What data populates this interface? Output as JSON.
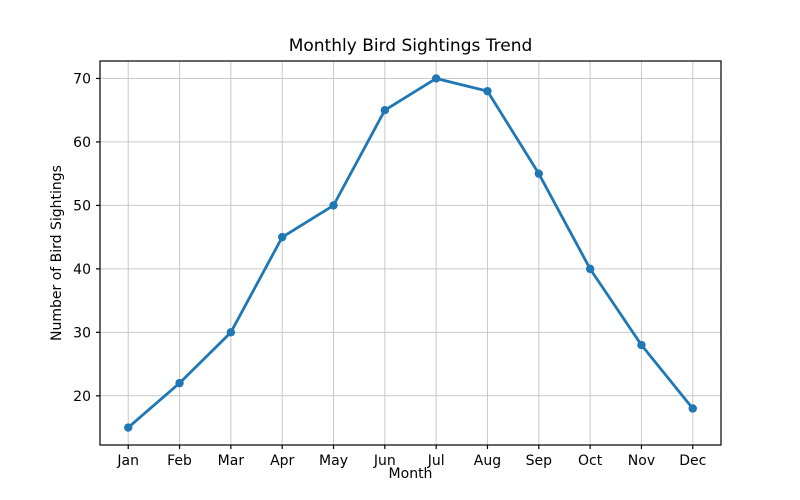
{
  "chart_data": {
    "type": "line",
    "title": "Monthly Bird Sightings Trend",
    "xlabel": "Month",
    "ylabel": "Number of Bird Sightings",
    "categories": [
      "Jan",
      "Feb",
      "Mar",
      "Apr",
      "May",
      "Jun",
      "Jul",
      "Aug",
      "Sep",
      "Oct",
      "Nov",
      "Dec"
    ],
    "values": [
      15,
      22,
      30,
      45,
      50,
      65,
      70,
      68,
      55,
      40,
      28,
      18
    ],
    "yticks": [
      20,
      30,
      40,
      50,
      60,
      70
    ],
    "ylim": [
      12.25,
      72.75
    ],
    "grid": true,
    "legend": "none",
    "line_color": "#1f77b4",
    "marker": "circle",
    "grid_color": "#c9c9c9",
    "spine_color": "#000000"
  }
}
